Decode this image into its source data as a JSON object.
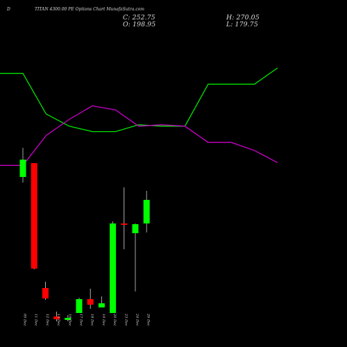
{
  "header": {
    "prefix": "D",
    "title": "TITAN 4300.00 PE Options Chart MunafaSutra.com",
    "c_label": "C: 252.75",
    "h_label": "H: 270.05",
    "o_label": "O: 198.95",
    "l_label": "L: 179.75"
  },
  "colors": {
    "background": "#000000",
    "up": "#00ff00",
    "down": "#ff0000",
    "line_green": "#00e600",
    "line_magenta": "#cc00cc",
    "text": "#dcdcdc"
  },
  "chart_data": [
    {
      "type": "line",
      "series": [
        {
          "color": "green",
          "values": [
            74,
            74,
            44,
            35,
            31,
            31,
            36,
            35,
            35,
            66,
            66,
            66,
            78
          ]
        },
        {
          "color": "magenta",
          "values": [
            6,
            6,
            28,
            40,
            50,
            47,
            35,
            36,
            35,
            23,
            23,
            17,
            8
          ]
        }
      ],
      "ylim": [
        0,
        100
      ]
    },
    {
      "type": "candlestick",
      "categories": [
        "09 Dec",
        "11 Dec",
        "12 Dec",
        "13 Dec",
        "16 Dec",
        "17 Dec",
        "18 Dec",
        "19 Dec",
        "20 Dec",
        "23 Dec",
        "24 Dec",
        "26 Dec"
      ],
      "series": [
        {
          "date": "09 Dec",
          "open": 445,
          "high": 487,
          "low": 437,
          "close": 470,
          "color": "green"
        },
        {
          "date": "11 Dec",
          "open": 465,
          "high": 465,
          "low": 312,
          "close": 313,
          "color": "red"
        },
        {
          "date": "12 Dec",
          "open": 285,
          "high": 294,
          "low": 268,
          "close": 270,
          "color": "red"
        },
        {
          "date": "13 Dec",
          "open": 244,
          "high": 251,
          "low": 237,
          "close": 240,
          "color": "red"
        },
        {
          "date": "16 Dec",
          "open": 239,
          "high": 246,
          "low": 237,
          "close": 242,
          "color": "green"
        },
        {
          "date": "17 Dec",
          "open": 249,
          "high": 271,
          "low": 249,
          "close": 269,
          "color": "green"
        },
        {
          "date": "18 Dec",
          "open": 269,
          "high": 284,
          "low": 255,
          "close": 261,
          "color": "red"
        },
        {
          "date": "19 Dec",
          "open": 257,
          "high": 273,
          "low": 257,
          "close": 263,
          "color": "green"
        },
        {
          "date": "20 Dec",
          "open": 249,
          "high": 381,
          "low": 249,
          "close": 378,
          "color": "green"
        },
        {
          "date": "23 Dec",
          "open": 378,
          "high": 430,
          "low": 341,
          "close": 376,
          "color": "red"
        },
        {
          "date": "24 Dec",
          "open": 364,
          "high": 378,
          "low": 280,
          "close": 377,
          "color": "green"
        },
        {
          "date": "26 Dec",
          "open": 378,
          "high": 425,
          "low": 365,
          "close": 412,
          "color": "green"
        }
      ],
      "ylim": [
        200,
        500
      ]
    }
  ]
}
